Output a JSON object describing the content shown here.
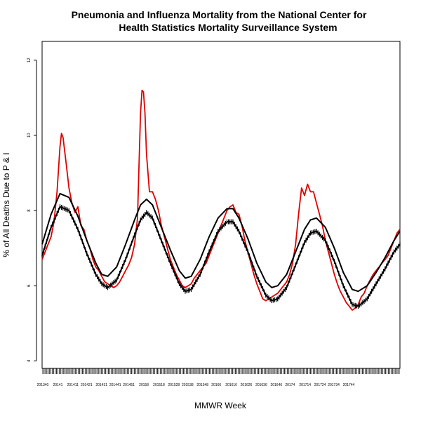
{
  "chart_data": {
    "type": "line",
    "title_lines": [
      "Pneumonia and Influenza Mortality from the National Center for",
      "Health Statistics Mortality Surveillance System"
    ],
    "xlabel": "MMWR Week",
    "ylabel": "% of All Deaths Due to P & I",
    "ylim": [
      3.8,
      12.5
    ],
    "yticks": [
      4,
      6,
      8,
      10,
      12
    ],
    "x_weeks_total": 262,
    "xtick_labels": [
      {
        "week": 0,
        "label": "201340"
      },
      {
        "week": 11,
        "label": "20141"
      },
      {
        "week": 22,
        "label": "201411"
      },
      {
        "week": 32,
        "label": "201421"
      },
      {
        "week": 43,
        "label": "201431"
      },
      {
        "week": 53,
        "label": "201441"
      },
      {
        "week": 63,
        "label": "201451"
      },
      {
        "week": 74,
        "label": "20158"
      },
      {
        "week": 85,
        "label": "201518"
      },
      {
        "week": 96,
        "label": "201528"
      },
      {
        "week": 106,
        "label": "201538"
      },
      {
        "week": 117,
        "label": "201548"
      },
      {
        "week": 127,
        "label": "20166"
      },
      {
        "week": 138,
        "label": "201616"
      },
      {
        "week": 149,
        "label": "201626"
      },
      {
        "week": 160,
        "label": "201636"
      },
      {
        "week": 171,
        "label": "201646"
      },
      {
        "week": 181,
        "label": "20174"
      },
      {
        "week": 192,
        "label": "201714"
      },
      {
        "week": 203,
        "label": "201724"
      },
      {
        "week": 213,
        "label": "201734"
      },
      {
        "week": 224,
        "label": "201744"
      }
    ],
    "series": [
      {
        "key": "observed",
        "color": "#e00000",
        "points": [
          [
            0,
            6.7
          ],
          [
            2,
            6.9
          ],
          [
            4,
            7.1
          ],
          [
            6,
            7.3
          ],
          [
            8,
            7.7
          ],
          [
            10,
            8.5
          ],
          [
            12,
            9.7
          ],
          [
            13,
            10.05
          ],
          [
            14,
            9.95
          ],
          [
            16,
            9.3
          ],
          [
            18,
            8.6
          ],
          [
            20,
            8.2
          ],
          [
            22,
            7.95
          ],
          [
            24,
            8.1
          ],
          [
            26,
            7.6
          ],
          [
            28,
            7.5
          ],
          [
            30,
            7.2
          ],
          [
            32,
            7.0
          ],
          [
            34,
            6.7
          ],
          [
            36,
            6.5
          ],
          [
            38,
            6.4
          ],
          [
            40,
            6.25
          ],
          [
            42,
            6.1
          ],
          [
            44,
            6.05
          ],
          [
            46,
            6.0
          ],
          [
            48,
            5.95
          ],
          [
            50,
            6.0
          ],
          [
            52,
            6.1
          ],
          [
            54,
            6.25
          ],
          [
            56,
            6.4
          ],
          [
            58,
            6.55
          ],
          [
            60,
            6.75
          ],
          [
            62,
            7.1
          ],
          [
            64,
            7.8
          ],
          [
            65,
            9.2
          ],
          [
            66,
            10.6
          ],
          [
            67,
            11.2
          ],
          [
            68,
            11.15
          ],
          [
            69,
            10.6
          ],
          [
            70,
            9.5
          ],
          [
            72,
            8.5
          ],
          [
            74,
            8.5
          ],
          [
            76,
            8.3
          ],
          [
            78,
            8.0
          ],
          [
            80,
            7.6
          ],
          [
            82,
            7.3
          ],
          [
            84,
            7.0
          ],
          [
            86,
            6.7
          ],
          [
            88,
            6.5
          ],
          [
            90,
            6.3
          ],
          [
            92,
            6.15
          ],
          [
            94,
            6.0
          ],
          [
            96,
            5.95
          ],
          [
            98,
            6.0
          ],
          [
            100,
            6.05
          ],
          [
            102,
            6.2
          ],
          [
            104,
            6.3
          ],
          [
            106,
            6.4
          ],
          [
            108,
            6.5
          ],
          [
            110,
            6.6
          ],
          [
            112,
            6.8
          ],
          [
            114,
            7.0
          ],
          [
            116,
            7.2
          ],
          [
            118,
            7.4
          ],
          [
            120,
            7.6
          ],
          [
            122,
            7.8
          ],
          [
            124,
            8.0
          ],
          [
            126,
            8.1
          ],
          [
            128,
            8.15
          ],
          [
            130,
            7.95
          ],
          [
            132,
            7.9
          ],
          [
            134,
            7.6
          ],
          [
            136,
            7.2
          ],
          [
            138,
            6.9
          ],
          [
            140,
            6.6
          ],
          [
            142,
            6.3
          ],
          [
            144,
            6.05
          ],
          [
            146,
            5.85
          ],
          [
            148,
            5.65
          ],
          [
            150,
            5.6
          ],
          [
            152,
            5.65
          ],
          [
            154,
            5.7
          ],
          [
            156,
            5.75
          ],
          [
            158,
            5.8
          ],
          [
            160,
            5.9
          ],
          [
            162,
            6.0
          ],
          [
            164,
            6.1
          ],
          [
            166,
            6.3
          ],
          [
            168,
            6.6
          ],
          [
            170,
            7.1
          ],
          [
            172,
            7.9
          ],
          [
            174,
            8.6
          ],
          [
            176,
            8.4
          ],
          [
            178,
            8.7
          ],
          [
            180,
            8.5
          ],
          [
            182,
            8.5
          ],
          [
            184,
            8.2
          ],
          [
            186,
            7.9
          ],
          [
            188,
            7.6
          ],
          [
            190,
            7.2
          ],
          [
            192,
            6.9
          ],
          [
            194,
            6.6
          ],
          [
            196,
            6.3
          ],
          [
            198,
            6.05
          ],
          [
            200,
            5.85
          ],
          [
            202,
            5.7
          ],
          [
            204,
            5.55
          ],
          [
            206,
            5.45
          ],
          [
            208,
            5.35
          ],
          [
            210,
            5.4
          ],
          [
            212,
            5.5
          ],
          [
            214,
            5.7
          ],
          [
            216,
            5.8
          ],
          [
            218,
            6.0
          ],
          [
            220,
            6.15
          ],
          [
            222,
            6.3
          ],
          [
            224,
            6.4
          ],
          [
            226,
            6.5
          ],
          [
            228,
            6.6
          ],
          [
            230,
            6.7
          ],
          [
            232,
            6.8
          ],
          [
            234,
            7.0
          ],
          [
            236,
            7.2
          ],
          [
            238,
            7.4
          ],
          [
            240,
            7.5
          ]
        ]
      },
      {
        "key": "epidemic-threshold",
        "color": "#000000",
        "points": [
          [
            0,
            7.1
          ],
          [
            6,
            7.9
          ],
          [
            12,
            8.45
          ],
          [
            18,
            8.35
          ],
          [
            24,
            7.85
          ],
          [
            30,
            7.2
          ],
          [
            36,
            6.6
          ],
          [
            40,
            6.3
          ],
          [
            44,
            6.25
          ],
          [
            50,
            6.5
          ],
          [
            56,
            7.1
          ],
          [
            62,
            7.75
          ],
          [
            66,
            8.15
          ],
          [
            70,
            8.3
          ],
          [
            74,
            8.15
          ],
          [
            80,
            7.55
          ],
          [
            86,
            6.95
          ],
          [
            92,
            6.4
          ],
          [
            96,
            6.2
          ],
          [
            100,
            6.25
          ],
          [
            106,
            6.7
          ],
          [
            112,
            7.3
          ],
          [
            118,
            7.8
          ],
          [
            124,
            8.05
          ],
          [
            128,
            8.05
          ],
          [
            132,
            7.8
          ],
          [
            138,
            7.25
          ],
          [
            144,
            6.6
          ],
          [
            150,
            6.1
          ],
          [
            154,
            5.95
          ],
          [
            158,
            6.0
          ],
          [
            164,
            6.3
          ],
          [
            170,
            6.9
          ],
          [
            176,
            7.5
          ],
          [
            180,
            7.75
          ],
          [
            184,
            7.8
          ],
          [
            190,
            7.55
          ],
          [
            196,
            7.0
          ],
          [
            202,
            6.35
          ],
          [
            208,
            5.9
          ],
          [
            212,
            5.85
          ],
          [
            218,
            6.0
          ],
          [
            224,
            6.35
          ],
          [
            230,
            6.75
          ],
          [
            236,
            7.2
          ],
          [
            240,
            7.45
          ]
        ]
      },
      {
        "key": "seasonal-baseline",
        "color": "#000000",
        "points": [
          [
            0,
            6.8
          ],
          [
            6,
            7.55
          ],
          [
            12,
            8.1
          ],
          [
            18,
            8.0
          ],
          [
            24,
            7.5
          ],
          [
            30,
            6.85
          ],
          [
            36,
            6.3
          ],
          [
            40,
            6.05
          ],
          [
            44,
            5.95
          ],
          [
            50,
            6.15
          ],
          [
            56,
            6.7
          ],
          [
            62,
            7.35
          ],
          [
            66,
            7.75
          ],
          [
            70,
            7.95
          ],
          [
            74,
            7.8
          ],
          [
            80,
            7.2
          ],
          [
            86,
            6.6
          ],
          [
            92,
            6.05
          ],
          [
            96,
            5.85
          ],
          [
            100,
            5.9
          ],
          [
            106,
            6.3
          ],
          [
            112,
            6.9
          ],
          [
            118,
            7.45
          ],
          [
            124,
            7.7
          ],
          [
            128,
            7.7
          ],
          [
            132,
            7.45
          ],
          [
            138,
            6.9
          ],
          [
            144,
            6.25
          ],
          [
            150,
            5.75
          ],
          [
            154,
            5.6
          ],
          [
            158,
            5.65
          ],
          [
            164,
            5.95
          ],
          [
            170,
            6.55
          ],
          [
            176,
            7.15
          ],
          [
            180,
            7.4
          ],
          [
            184,
            7.45
          ],
          [
            190,
            7.2
          ],
          [
            196,
            6.65
          ],
          [
            202,
            6.0
          ],
          [
            208,
            5.5
          ],
          [
            212,
            5.45
          ],
          [
            218,
            5.65
          ],
          [
            224,
            6.05
          ],
          [
            230,
            6.45
          ],
          [
            236,
            6.9
          ],
          [
            240,
            7.1
          ]
        ]
      }
    ],
    "grid": false,
    "legend": "none"
  }
}
